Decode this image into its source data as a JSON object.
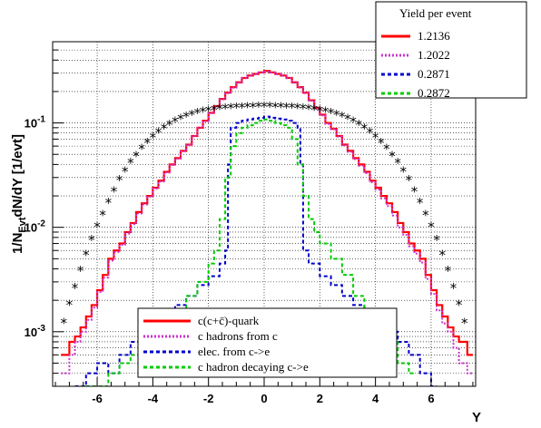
{
  "chart_data": {
    "type": "line",
    "title": "",
    "xlabel": "Y",
    "ylabel_main": "1/N",
    "ylabel_sub": "Evt",
    "ylabel_rest": "dN/dY [1/evt]",
    "xlim": [
      -7.6,
      7.6
    ],
    "ylim": [
      0.0003,
      0.6
    ],
    "yscale": "log",
    "grid": true,
    "x_ticks": [
      "-6",
      "-4",
      "-2",
      "0",
      "2",
      "4",
      "6"
    ],
    "x_tick_values": [
      -6,
      -4,
      -2,
      0,
      2,
      4,
      6
    ],
    "y_ticks": [
      {
        "base": "10",
        "exp": "-3",
        "value": 0.001
      },
      {
        "base": "10",
        "exp": "-2",
        "value": 0.01
      },
      {
        "base": "10",
        "exp": "-1",
        "value": 0.1
      }
    ],
    "legend_top": {
      "header": "Yield per event",
      "entries": [
        {
          "label": "1.2136",
          "color": "#ff0000",
          "dash": "solid"
        },
        {
          "label": "1.2022",
          "color": "#cc33cc",
          "dash": "dot"
        },
        {
          "label": "0.2871",
          "color": "#0000cc",
          "dash": "dash"
        },
        {
          "label": "0.2872",
          "color": "#00cc00",
          "dash": "dash"
        }
      ]
    },
    "legend_bottom": {
      "entries": [
        {
          "label": "c(c+c̄)-quark",
          "color": "#ff0000",
          "dash": "solid"
        },
        {
          "label": "c hadrons from c",
          "color": "#cc33cc",
          "dash": "dot"
        },
        {
          "label": "elec. from c->e",
          "color": "#0000cc",
          "dash": "dash"
        },
        {
          "label": "c hadron decaying c->e",
          "color": "#00cc00",
          "dash": "dash"
        }
      ]
    },
    "series": [
      {
        "color": "#ff0000",
        "style": "step-solid",
        "x": [
          -7.3,
          -7.0,
          -6.8,
          -6.6,
          -6.4,
          -6.2,
          -6.0,
          -5.8,
          -5.6,
          -5.4,
          -5.2,
          -5.0,
          -4.8,
          -4.6,
          -4.4,
          -4.2,
          -4.0,
          -3.8,
          -3.6,
          -3.4,
          -3.2,
          -3.0,
          -2.8,
          -2.6,
          -2.4,
          -2.2,
          -2.0,
          -1.8,
          -1.6,
          -1.4,
          -1.2,
          -1.0,
          -0.8,
          -0.6,
          -0.4,
          -0.2,
          0.0,
          0.2,
          0.4,
          0.6,
          0.8,
          1.0,
          1.2,
          1.4,
          1.6,
          1.8,
          2.0,
          2.2,
          2.4,
          2.6,
          2.8,
          3.0,
          3.2,
          3.4,
          3.6,
          3.8,
          4.0,
          4.2,
          4.4,
          4.6,
          4.8,
          5.0,
          5.2,
          5.4,
          5.6,
          5.8,
          6.0,
          6.2,
          6.4,
          6.6,
          6.8,
          7.0,
          7.3
        ],
        "y": [
          0.0006,
          0.0008,
          0.0009,
          0.0011,
          0.0014,
          0.0018,
          0.0025,
          0.0035,
          0.005,
          0.006,
          0.007,
          0.009,
          0.011,
          0.014,
          0.017,
          0.02,
          0.024,
          0.028,
          0.034,
          0.04,
          0.046,
          0.054,
          0.062,
          0.075,
          0.09,
          0.105,
          0.125,
          0.145,
          0.17,
          0.195,
          0.22,
          0.245,
          0.27,
          0.285,
          0.295,
          0.305,
          0.315,
          0.305,
          0.295,
          0.285,
          0.27,
          0.245,
          0.22,
          0.195,
          0.165,
          0.14,
          0.12,
          0.1,
          0.088,
          0.075,
          0.062,
          0.054,
          0.046,
          0.04,
          0.034,
          0.028,
          0.024,
          0.02,
          0.017,
          0.014,
          0.011,
          0.009,
          0.007,
          0.006,
          0.005,
          0.0035,
          0.0025,
          0.0018,
          0.0014,
          0.0011,
          0.0009,
          0.0008,
          0.0006
        ]
      },
      {
        "color": "#cc33cc",
        "style": "step-dot",
        "x": [
          -7.3,
          -7.0,
          -6.8,
          -6.6,
          -6.4,
          -6.2,
          -6.0,
          -5.8,
          -5.6,
          -5.4,
          -5.2,
          -5.0,
          -4.8,
          -4.6,
          -4.4,
          -4.2,
          -4.0,
          -3.8,
          -3.6,
          -3.4,
          -3.2,
          -3.0,
          -2.8,
          -2.6,
          -2.4,
          -2.2,
          -2.0,
          -1.8,
          -1.6,
          -1.4,
          -1.2,
          -1.0,
          -0.8,
          -0.6,
          -0.4,
          -0.2,
          0.0,
          0.2,
          0.4,
          0.6,
          0.8,
          1.0,
          1.2,
          1.4,
          1.6,
          1.8,
          2.0,
          2.2,
          2.4,
          2.6,
          2.8,
          3.0,
          3.2,
          3.4,
          3.6,
          3.8,
          4.0,
          4.2,
          4.4,
          4.6,
          4.8,
          5.0,
          5.2,
          5.4,
          5.6,
          5.8,
          6.0,
          6.2,
          6.4,
          6.6,
          6.8,
          7.0,
          7.3
        ],
        "y": [
          0.0004,
          0.0006,
          0.0008,
          0.001,
          0.0013,
          0.0017,
          0.0024,
          0.0033,
          0.0048,
          0.0058,
          0.0068,
          0.0087,
          0.0107,
          0.0136,
          0.0166,
          0.0196,
          0.0235,
          0.0275,
          0.0335,
          0.0395,
          0.0455,
          0.0535,
          0.0615,
          0.0745,
          0.0895,
          0.104,
          0.124,
          0.144,
          0.168,
          0.193,
          0.218,
          0.243,
          0.268,
          0.283,
          0.293,
          0.303,
          0.31,
          0.303,
          0.293,
          0.283,
          0.268,
          0.243,
          0.218,
          0.193,
          0.163,
          0.138,
          0.118,
          0.098,
          0.087,
          0.074,
          0.061,
          0.053,
          0.045,
          0.039,
          0.033,
          0.027,
          0.023,
          0.019,
          0.016,
          0.013,
          0.01,
          0.0085,
          0.0066,
          0.0056,
          0.0046,
          0.0032,
          0.0023,
          0.0016,
          0.0012,
          0.001,
          0.0007,
          0.0005,
          0.0004
        ]
      },
      {
        "color": "#0000cc",
        "style": "step-dash",
        "x": [
          -6.8,
          -6.4,
          -6.0,
          -5.6,
          -5.2,
          -4.8,
          -4.4,
          -4.0,
          -3.6,
          -3.2,
          -2.8,
          -2.4,
          -2.0,
          -1.6,
          -1.4,
          -1.3,
          -1.2,
          -1.0,
          -0.8,
          -0.6,
          -0.4,
          -0.2,
          0.0,
          0.2,
          0.4,
          0.6,
          0.8,
          1.0,
          1.2,
          1.3,
          1.4,
          1.6,
          2.0,
          2.4,
          2.8,
          3.2,
          3.6,
          4.0,
          4.4,
          4.8,
          5.2,
          5.6,
          6.0
        ],
        "y": [
          0.0003,
          0.0004,
          0.0005,
          0.0004,
          0.0006,
          0.0008,
          0.001,
          0.0012,
          0.0014,
          0.0018,
          0.0022,
          0.0028,
          0.0034,
          0.0045,
          0.006,
          0.04,
          0.09,
          0.1,
          0.105,
          0.108,
          0.11,
          0.112,
          0.115,
          0.112,
          0.11,
          0.108,
          0.105,
          0.1,
          0.09,
          0.04,
          0.006,
          0.0045,
          0.0034,
          0.0028,
          0.0022,
          0.0018,
          0.0014,
          0.0012,
          0.001,
          0.0008,
          0.0006,
          0.0004,
          0.0003
        ]
      },
      {
        "color": "#00cc00",
        "style": "step-dash",
        "x": [
          -6.4,
          -6.0,
          -5.6,
          -5.2,
          -4.8,
          -4.4,
          -4.0,
          -3.6,
          -3.2,
          -2.8,
          -2.4,
          -2.0,
          -1.8,
          -1.6,
          -1.4,
          -1.2,
          -1.0,
          -0.8,
          -0.6,
          -0.4,
          -0.2,
          0.0,
          0.2,
          0.4,
          0.6,
          0.8,
          1.0,
          1.2,
          1.4,
          1.6,
          1.8,
          2.0,
          2.4,
          2.8,
          3.2,
          3.6,
          4.0,
          4.4,
          4.8,
          5.2
        ],
        "y": [
          0.0003,
          0.0003,
          0.0004,
          0.0005,
          0.0006,
          0.0008,
          0.001,
          0.0012,
          0.0016,
          0.0022,
          0.003,
          0.0045,
          0.006,
          0.012,
          0.03,
          0.06,
          0.08,
          0.09,
          0.095,
          0.1,
          0.105,
          0.108,
          0.105,
          0.1,
          0.095,
          0.09,
          0.07,
          0.04,
          0.02,
          0.012,
          0.009,
          0.007,
          0.005,
          0.0035,
          0.0022,
          0.0016,
          0.0011,
          0.0008,
          0.0005,
          0.0004
        ]
      },
      {
        "color": "#000000",
        "style": "markers-star",
        "x": [
          -7.2,
          -7.0,
          -6.8,
          -6.6,
          -6.4,
          -6.2,
          -6.0,
          -5.8,
          -5.6,
          -5.4,
          -5.2,
          -5.0,
          -4.8,
          -4.6,
          -4.4,
          -4.2,
          -4.0,
          -3.8,
          -3.6,
          -3.4,
          -3.2,
          -3.0,
          -2.8,
          -2.6,
          -2.4,
          -2.2,
          -2.0,
          -1.8,
          -1.6,
          -1.4,
          -1.2,
          -1.0,
          -0.8,
          -0.6,
          -0.4,
          -0.2,
          0.0,
          0.2,
          0.4,
          0.6,
          0.8,
          1.0,
          1.2,
          1.4,
          1.6,
          1.8,
          2.0,
          2.2,
          2.4,
          2.6,
          2.8,
          3.0,
          3.2,
          3.4,
          3.6,
          3.8,
          4.0,
          4.2,
          4.4,
          4.6,
          4.8,
          5.0,
          5.2,
          5.4,
          5.6,
          5.8,
          6.0,
          6.2,
          6.4,
          6.6,
          6.8,
          7.0,
          7.2
        ],
        "y": [
          0.0012,
          0.0018,
          0.0026,
          0.0038,
          0.0054,
          0.0075,
          0.01,
          0.013,
          0.017,
          0.022,
          0.028,
          0.034,
          0.041,
          0.048,
          0.056,
          0.064,
          0.072,
          0.08,
          0.088,
          0.095,
          0.102,
          0.108,
          0.114,
          0.119,
          0.123,
          0.127,
          0.13,
          0.133,
          0.135,
          0.137,
          0.138,
          0.139,
          0.14,
          0.141,
          0.141,
          0.142,
          0.142,
          0.142,
          0.141,
          0.141,
          0.14,
          0.139,
          0.138,
          0.137,
          0.135,
          0.133,
          0.13,
          0.127,
          0.123,
          0.119,
          0.114,
          0.108,
          0.102,
          0.095,
          0.088,
          0.08,
          0.072,
          0.064,
          0.056,
          0.048,
          0.041,
          0.034,
          0.028,
          0.022,
          0.017,
          0.013,
          0.01,
          0.0075,
          0.0054,
          0.0038,
          0.0026,
          0.0018,
          0.0012
        ]
      }
    ]
  }
}
